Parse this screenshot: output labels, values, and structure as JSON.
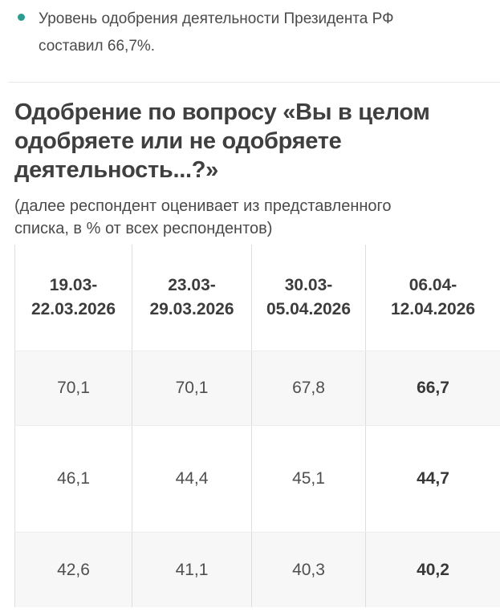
{
  "summary": {
    "bullet_text": "Уровень одобрения деятельности Президента РФ составил 66,7%."
  },
  "section": {
    "title": "Одобрение по вопросу «Вы в целом одобряете или не одобряете деятельность...?»",
    "subtitle": "(далее респондент оценивает из представленного списка, в % от всех респондентов)"
  },
  "table": {
    "columns": [
      {
        "line1": "19.03-",
        "line2": "22.03.2026"
      },
      {
        "line1": "23.03-",
        "line2": "29.03.2026"
      },
      {
        "line1": "30.03-",
        "line2": "05.04.2026"
      },
      {
        "line1": "06.04-",
        "line2": "12.04.2026"
      }
    ],
    "rows": [
      [
        "70,1",
        "70,1",
        "67,8",
        "66,7"
      ],
      [
        "46,1",
        "44,4",
        "45,1",
        "44,7"
      ],
      [
        "42,6",
        "41,1",
        "40,3",
        "40,2"
      ]
    ]
  },
  "colors": {
    "accent_teal": "#2a9d8f",
    "heading_text": "#3f3f3f",
    "body_text": "#4a4a4a",
    "divider": "#e7e7e7",
    "table_border": "#dedede",
    "row_alt_bg": "#f7f7f7"
  }
}
